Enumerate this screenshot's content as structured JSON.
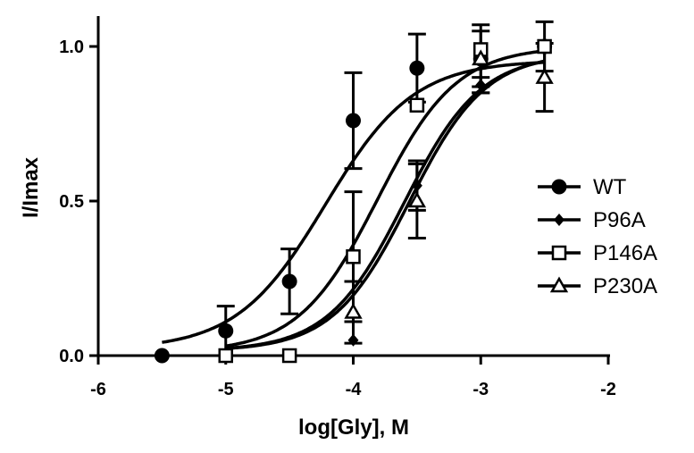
{
  "chart_data": {
    "type": "scatter",
    "title": "",
    "xlabel": "log[Gly], M",
    "ylabel": "I/Imax",
    "xlim": [
      -6,
      -2
    ],
    "ylim": [
      0,
      1.0
    ],
    "x_ticks": [
      "-6",
      "-5",
      "-4",
      "-3",
      "-2"
    ],
    "y_ticks": [
      "0.0",
      "0.5",
      "1.0"
    ],
    "legend_position": "right",
    "grid": false,
    "series": [
      {
        "name": "WT",
        "marker": "filled-circle",
        "x": [
          -5.5,
          -5.0,
          -4.5,
          -4.0,
          -3.5,
          -3.0,
          -2.5
        ],
        "y": [
          0.0,
          0.08,
          0.24,
          0.76,
          0.93,
          0.96,
          1.0
        ],
        "error": [
          0,
          0.08,
          0.105,
          0.155,
          0.11,
          0.09,
          0.08
        ],
        "fit": {
          "bottom": 0.02,
          "top": 0.955,
          "logEC50": -4.22,
          "hill": 1.25
        }
      },
      {
        "name": "P96A",
        "marker": "filled-diamond",
        "x": [
          -4.0,
          -3.5,
          -3.0,
          -2.5
        ],
        "y": [
          0.05,
          0.55,
          0.875,
          1.0
        ],
        "error": [
          0,
          0.08,
          0.025,
          0.0
        ],
        "fit": {
          "bottom": 0.015,
          "top": 0.98,
          "logEC50": -3.56,
          "hill": 1.45
        }
      },
      {
        "name": "P146A",
        "marker": "open-square",
        "x": [
          -5.0,
          -4.5,
          -4.0,
          -3.5,
          -3.0,
          -2.5
        ],
        "y": [
          0.0,
          0.0,
          0.32,
          0.81,
          0.99,
          1.0
        ],
        "error": [
          0,
          0,
          0.21,
          0.0,
          0.0,
          0.0
        ],
        "fit": {
          "bottom": 0.01,
          "top": 1.0,
          "logEC50": -3.81,
          "hill": 1.4
        }
      },
      {
        "name": "P230A",
        "marker": "open-triangle",
        "x": [
          -4.0,
          -3.5,
          -3.0,
          -2.5
        ],
        "y": [
          0.14,
          0.5,
          0.96,
          0.9
        ],
        "error": [
          0.1,
          0.12,
          0.11,
          0.11
        ],
        "fit": {
          "bottom": 0.015,
          "top": 0.975,
          "logEC50": -3.6,
          "hill": 1.45
        }
      }
    ]
  }
}
